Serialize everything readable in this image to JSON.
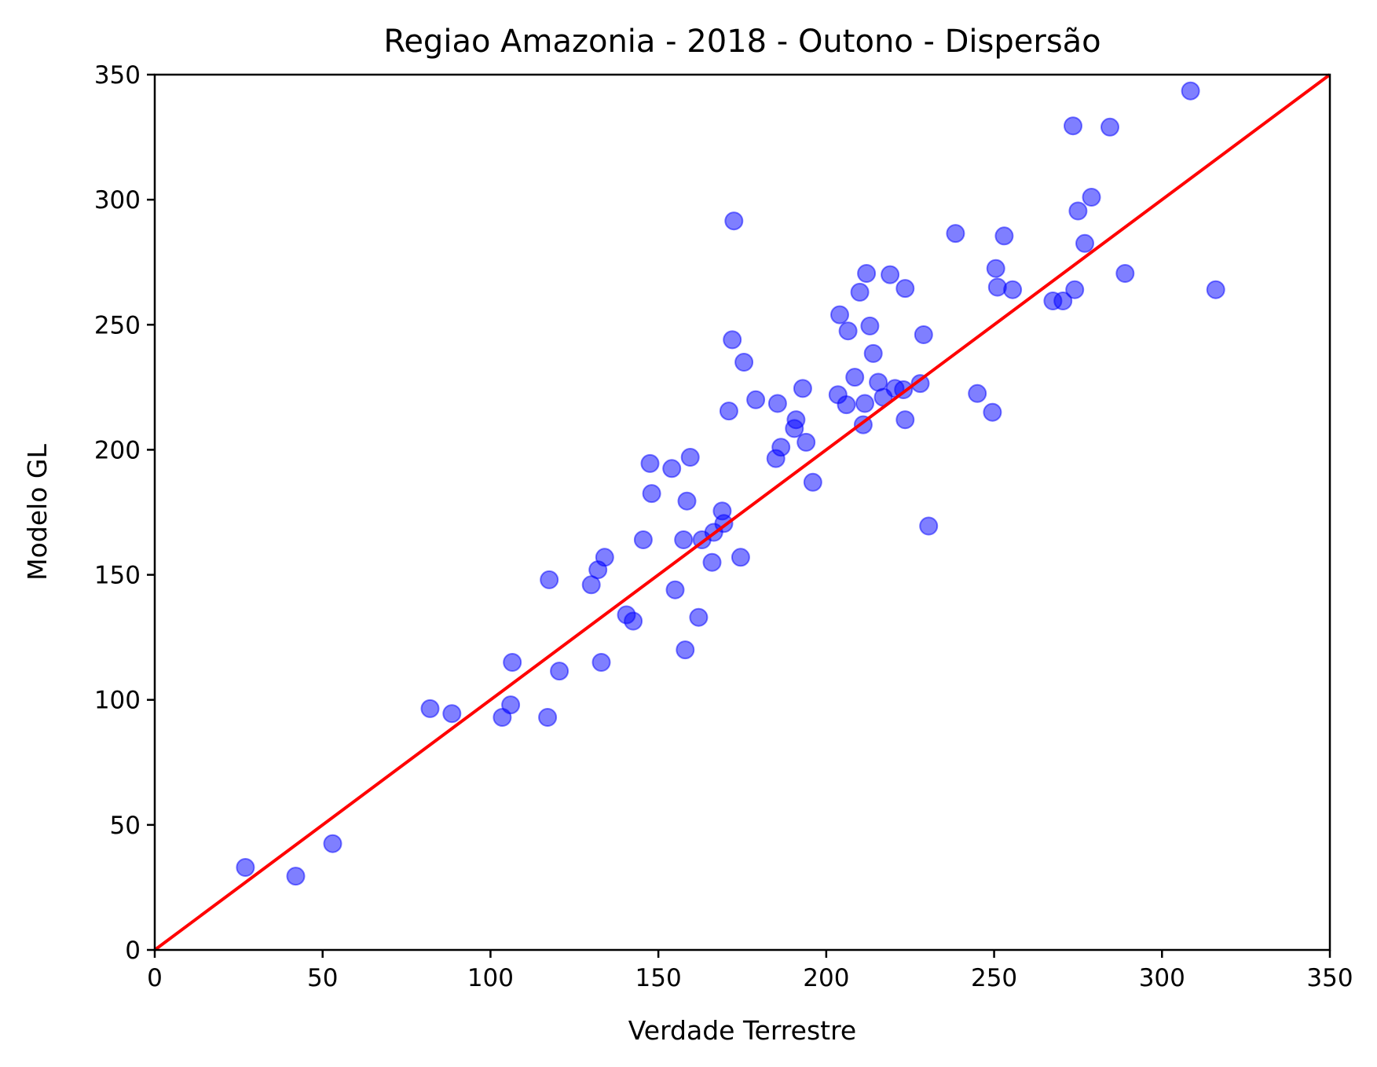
{
  "chart_data": {
    "type": "scatter",
    "title": "Regiao Amazonia - 2018 - Outono - Dispersão",
    "xlabel": "Verdade Terrestre",
    "ylabel": "Modelo GL",
    "xlim": [
      0,
      350
    ],
    "ylim": [
      0,
      350
    ],
    "xticks": [
      "0",
      "50",
      "100",
      "150",
      "200",
      "250",
      "300",
      "350"
    ],
    "yticks": [
      "0",
      "50",
      "100",
      "150",
      "200",
      "250",
      "300",
      "350"
    ],
    "grid": false,
    "colors": {
      "points": "#0000ff",
      "line": "#ff0000",
      "axes": "#000000"
    },
    "reference_line": {
      "from": [
        0,
        0
      ],
      "to": [
        350,
        350
      ]
    },
    "series": [
      {
        "points": [
          [
            27,
            33
          ],
          [
            42,
            29.5
          ],
          [
            53,
            42.5
          ],
          [
            82,
            96.5
          ],
          [
            88.5,
            94.5
          ],
          [
            103.5,
            93
          ],
          [
            106,
            98
          ],
          [
            106.5,
            115
          ],
          [
            117,
            93
          ],
          [
            117.5,
            148
          ],
          [
            120.5,
            111.5
          ],
          [
            130,
            146
          ],
          [
            132,
            152
          ],
          [
            133,
            115
          ],
          [
            134,
            157
          ],
          [
            140.5,
            134
          ],
          [
            142.5,
            131.5
          ],
          [
            145.5,
            164
          ],
          [
            147.5,
            194.5
          ],
          [
            148,
            182.5
          ],
          [
            154,
            192.5
          ],
          [
            155,
            144
          ],
          [
            157.5,
            164
          ],
          [
            158,
            120
          ],
          [
            158.5,
            179.5
          ],
          [
            159.5,
            197
          ],
          [
            162,
            133
          ],
          [
            163,
            164
          ],
          [
            166,
            155
          ],
          [
            166.5,
            167
          ],
          [
            169,
            175.5
          ],
          [
            169.5,
            170.5
          ],
          [
            171,
            215.5
          ],
          [
            172,
            244
          ],
          [
            172.5,
            291.5
          ],
          [
            174.5,
            157
          ],
          [
            175.5,
            235
          ],
          [
            179,
            220
          ],
          [
            185,
            196.5
          ],
          [
            185.5,
            218.5
          ],
          [
            186.5,
            201
          ],
          [
            190.5,
            208.5
          ],
          [
            191,
            212
          ],
          [
            193,
            224.5
          ],
          [
            194,
            203
          ],
          [
            196,
            187
          ],
          [
            203.5,
            222
          ],
          [
            204,
            254
          ],
          [
            206,
            218
          ],
          [
            206.5,
            247.5
          ],
          [
            208.5,
            229
          ],
          [
            210,
            263
          ],
          [
            211,
            210
          ],
          [
            211.5,
            218.5
          ],
          [
            212,
            270.5
          ],
          [
            213,
            249.5
          ],
          [
            214,
            238.5
          ],
          [
            215.5,
            227
          ],
          [
            217,
            221
          ],
          [
            219,
            270
          ],
          [
            220.5,
            224.5
          ],
          [
            223,
            224
          ],
          [
            223.5,
            212
          ],
          [
            223.5,
            264.5
          ],
          [
            228,
            226.5
          ],
          [
            229,
            246
          ],
          [
            230.5,
            169.5
          ],
          [
            238.5,
            286.5
          ],
          [
            245,
            222.5
          ],
          [
            249.5,
            215
          ],
          [
            250.5,
            272.5
          ],
          [
            251,
            265
          ],
          [
            253,
            285.5
          ],
          [
            255.5,
            264
          ],
          [
            267.5,
            259.5
          ],
          [
            270.5,
            259.5
          ],
          [
            273.5,
            329.5
          ],
          [
            274,
            264
          ],
          [
            275,
            295.5
          ],
          [
            277,
            282.5
          ],
          [
            279,
            301
          ],
          [
            284.5,
            329
          ],
          [
            289,
            270.5
          ],
          [
            308.5,
            343.5
          ],
          [
            316,
            264
          ]
        ]
      }
    ]
  }
}
